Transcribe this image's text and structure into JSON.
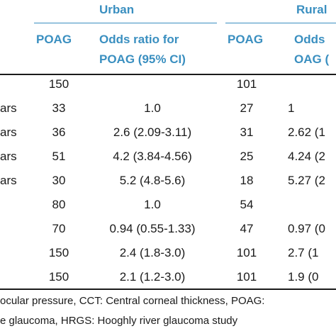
{
  "header": {
    "urban": "Urban",
    "rural": "Rural",
    "poag_urban": "POAG",
    "or_urban_l1": "Odds ratio for",
    "or_urban_l2": "POAG (95% CI)",
    "poag_rural": "POAG",
    "or_rural_l1": "Odds",
    "or_rural_l2": "OAG ("
  },
  "rows": [
    {
      "label": "",
      "urban_n": "150",
      "urban_or": "",
      "rural_n": "101",
      "rural_or": ""
    },
    {
      "label": "ars",
      "urban_n": "33",
      "urban_or": "1.0",
      "rural_n": "27",
      "rural_or": "1"
    },
    {
      "label": "ars",
      "urban_n": "36",
      "urban_or": "2.6 (2.09-3.11)",
      "rural_n": "31",
      "rural_or": "2.62 (1"
    },
    {
      "label": "ars",
      "urban_n": "51",
      "urban_or": "4.2 (3.84-4.56)",
      "rural_n": "25",
      "rural_or": "4.24 (2"
    },
    {
      "label": "ars",
      "urban_n": "30",
      "urban_or": "5.2 (4.8-5.6)",
      "rural_n": "18",
      "rural_or": "5.27 (2"
    },
    {
      "label": "",
      "urban_n": "80",
      "urban_or": "1.0",
      "rural_n": "54",
      "rural_or": ""
    },
    {
      "label": "",
      "urban_n": "70",
      "urban_or": "0.94 (0.55-1.33)",
      "rural_n": "47",
      "rural_or": "0.97 (0"
    },
    {
      "label": "",
      "urban_n": "150",
      "urban_or": "2.4 (1.8-3.0)",
      "rural_n": "101",
      "rural_or": "2.7 (1"
    },
    {
      "label": "",
      "urban_n": "150",
      "urban_or": "2.1 (1.2-3.0)",
      "rural_n": "101",
      "rural_or": "1.9 (0"
    }
  ],
  "footnote": {
    "line1": "ocular pressure, CCT: Central corneal thickness, POAG:",
    "line2": "e glaucoma, HRGS: Hooghly river glaucoma study"
  }
}
